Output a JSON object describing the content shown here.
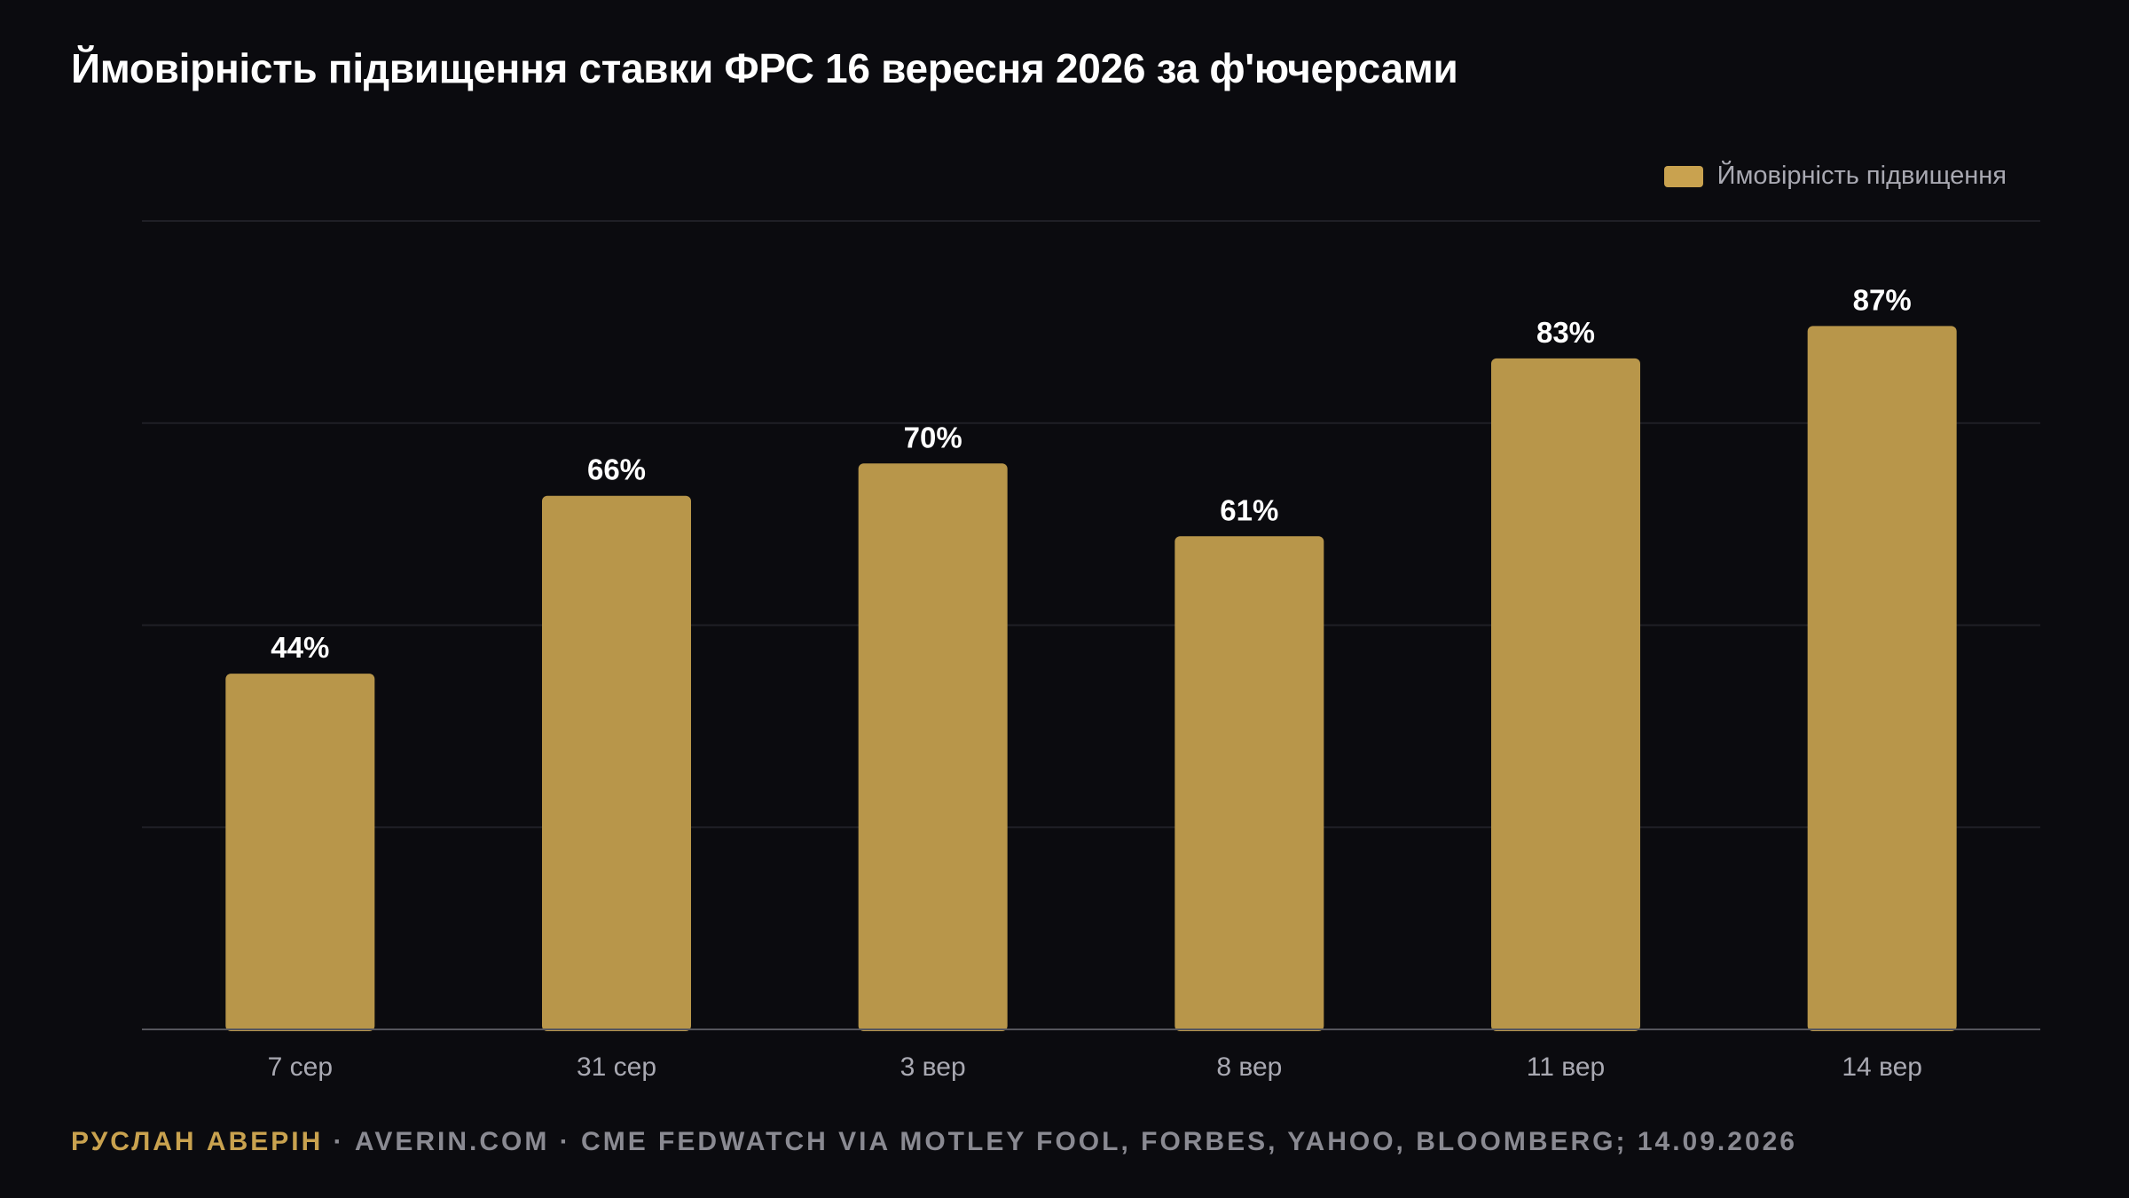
{
  "colors": {
    "background": "#0b0b0f",
    "bar": "#b8964a",
    "legend_swatch": "#c9a24f",
    "gridline": "#1f1f26",
    "axis": "#55555c",
    "author": "#c9a24f",
    "muted": "#8a8a92"
  },
  "footer": {
    "author": "РУСЛАН АВЕРІН",
    "rest": " · AVERIN.COM · CME FEDWATCH VIA MOTLEY FOOL, FORBES, YAHOO, BLOOMBERG; 14.09.2026"
  },
  "chart_data": {
    "type": "bar",
    "title": "Ймовірність підвищення ставки ФРС 16 вересня 2026 за ф'ючерсами",
    "xlabel": "",
    "ylabel": "",
    "categories": [
      "7 сер",
      "31 сер",
      "3 вер",
      "8 вер",
      "11 вер",
      "14 вер"
    ],
    "series": [
      {
        "name": "Ймовірність підвищення",
        "values": [
          44,
          66,
          70,
          61,
          83,
          87
        ],
        "labels": [
          "44%",
          "66%",
          "70%",
          "61%",
          "83%",
          "87%"
        ]
      }
    ],
    "ylim": [
      0,
      100
    ],
    "grid": true,
    "legend": "top-right"
  }
}
